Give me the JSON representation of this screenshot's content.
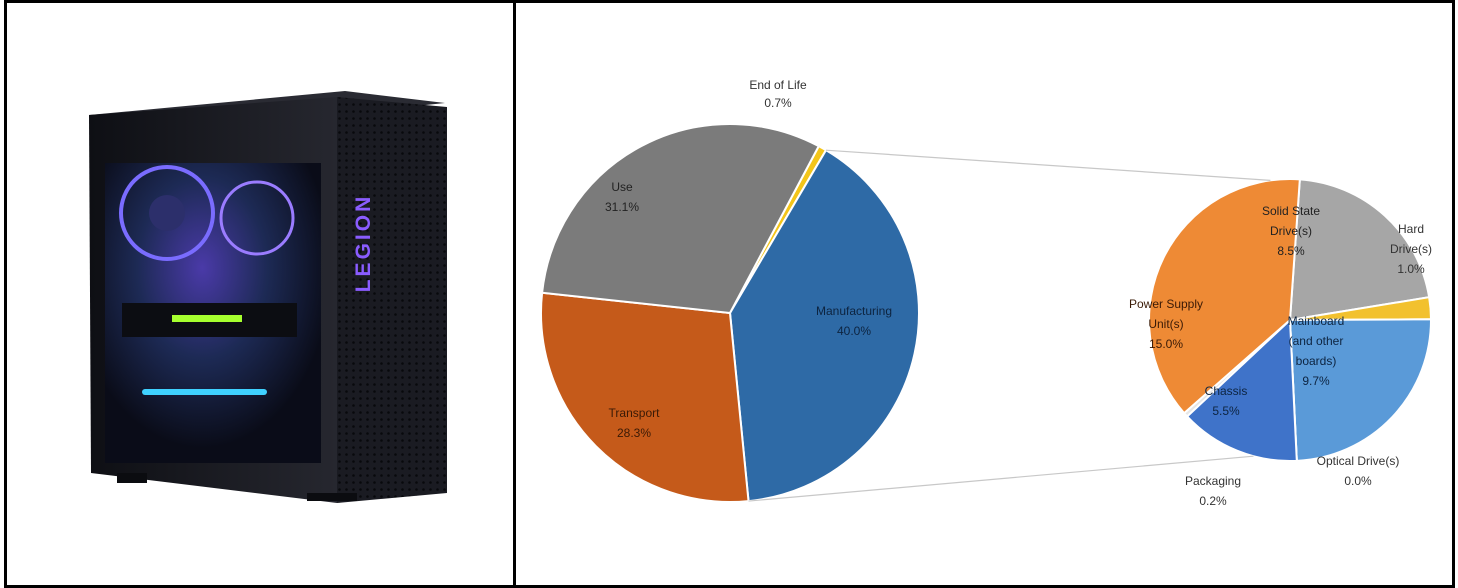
{
  "product_image": {
    "case_logo_text": "LEGION",
    "colors": {
      "case": "#1b1c22",
      "glow_purple": "#8a5cff",
      "glow_cyan": "#3fd1ff",
      "gpu_green": "#a6ff2e"
    }
  },
  "chart_data": [
    {
      "type": "pie",
      "title": "",
      "slices": [
        {
          "name": "End of Life",
          "value": 0.7,
          "label": "0.7%",
          "color": "#f3c51a"
        },
        {
          "name": "Manufacturing",
          "value": 40.0,
          "label": "40.0%",
          "color": "#2e6aa6"
        },
        {
          "name": "Transport",
          "value": 28.3,
          "label": "28.3%",
          "color": "#c55a1a"
        },
        {
          "name": "Use",
          "value": 31.1,
          "label": "31.1%",
          "color": "#7b7b7b"
        }
      ]
    },
    {
      "type": "pie",
      "title": "",
      "breakdown_of": "Manufacturing",
      "slices": [
        {
          "name": "Solid State Drive(s)",
          "value": 8.5,
          "label": "8.5%",
          "color": "#a6a6a6"
        },
        {
          "name": "Hard Drive(s)",
          "value": 1.0,
          "label": "1.0%",
          "color": "#f2c12e"
        },
        {
          "name": "Mainboard (and other boards)",
          "value": 9.7,
          "label": "9.7%",
          "color": "#5a9ad8"
        },
        {
          "name": "Optical Drive(s)",
          "value": 0.0,
          "label": "0.0%",
          "color": "#8fbce8"
        },
        {
          "name": "Chassis",
          "value": 5.5,
          "label": "5.5%",
          "color": "#3f73c9"
        },
        {
          "name": "Packaging",
          "value": 0.2,
          "label": "0.2%",
          "color": "#e6e6e6"
        },
        {
          "name": "Power Supply Unit(s)",
          "value": 15.0,
          "label": "15.0%",
          "color": "#ee8a35"
        }
      ]
    }
  ],
  "labels": {
    "end_of_life": {
      "line1": "End of Life",
      "line2": "0.7%"
    },
    "use": {
      "line1": "Use",
      "line2": "31.1%"
    },
    "manufacturing": {
      "line1": "Manufacturing",
      "line2": "40.0%"
    },
    "transport": {
      "line1": "Transport",
      "line2": "28.3%"
    },
    "ssd": {
      "line1": "Solid State",
      "line2": "Drive(s)",
      "line3": "8.5%"
    },
    "hdd": {
      "line1": "Hard",
      "line2": "Drive(s)",
      "line3": "1.0%"
    },
    "psu": {
      "line1": "Power Supply",
      "line2": "Unit(s)",
      "line3": "15.0%"
    },
    "mainboard": {
      "line1": "Mainboard",
      "line2": "(and other",
      "line3": "boards)",
      "line4": "9.7%"
    },
    "chassis": {
      "line1": "Chassis",
      "line2": "5.5%"
    },
    "optical": {
      "line1": "Optical Drive(s)",
      "line2": "0.0%"
    },
    "packaging": {
      "line1": "Packaging",
      "line2": "0.2%"
    }
  }
}
